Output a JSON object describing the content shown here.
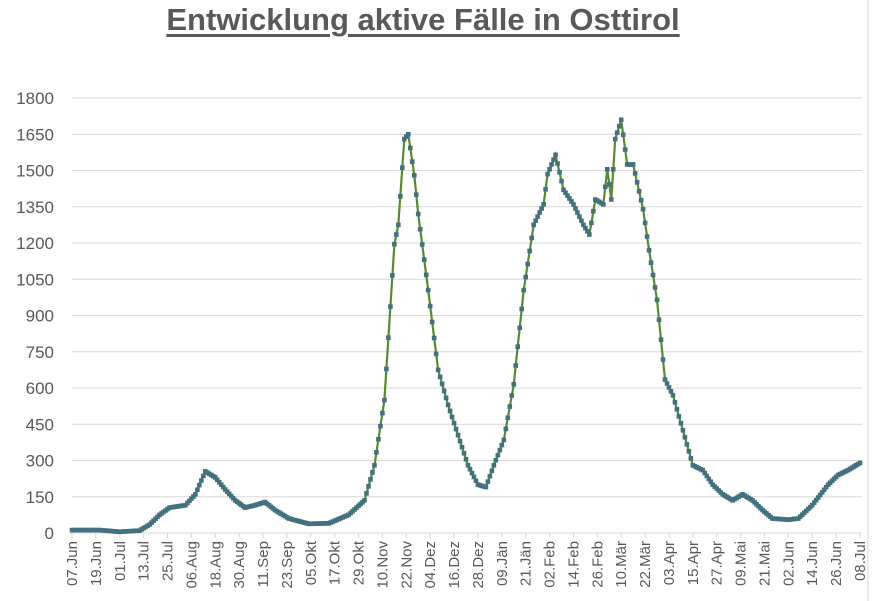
{
  "chart_data": {
    "type": "line",
    "title": "Entwicklung aktive Fälle in Osttirol",
    "xlabel": "",
    "ylabel": "",
    "ylim": [
      0,
      1800
    ],
    "yticks": [
      0,
      150,
      300,
      450,
      600,
      750,
      900,
      1050,
      1200,
      1350,
      1500,
      1650,
      1800
    ],
    "grid": true,
    "legend": null,
    "x_tick_labels": [
      "07.Jun",
      "19.Jun",
      "01.Jul",
      "13.Jul",
      "25.Jul",
      "06.Aug",
      "18.Aug",
      "30.Aug",
      "11.Sep",
      "23.Sep",
      "05.Okt",
      "17.Okt",
      "29.Okt",
      "10.Nov",
      "22.Nov",
      "04.Dez",
      "16.Dez",
      "28.Dez",
      "09.Jän",
      "21.Jän",
      "02.Feb",
      "14.Feb",
      "26.Feb",
      "10.Mär",
      "22.Mär",
      "03.Apr",
      "15.Apr",
      "27.Apr",
      "09.Mai",
      "21.Mai",
      "02.Jun",
      "14.Jun",
      "26.Jun",
      "08.Jul"
    ],
    "x_tick_interval_days": 12,
    "series": [
      {
        "name": "Aktive Fälle",
        "line_color": "#5a8a2e",
        "marker_color": "#44717f",
        "points_day_value": [
          [
            0,
            12
          ],
          [
            14,
            12
          ],
          [
            24,
            5
          ],
          [
            34,
            10
          ],
          [
            39,
            35
          ],
          [
            44,
            75
          ],
          [
            49,
            105
          ],
          [
            57,
            115
          ],
          [
            62,
            160
          ],
          [
            67,
            255
          ],
          [
            72,
            230
          ],
          [
            77,
            180
          ],
          [
            82,
            135
          ],
          [
            87,
            105
          ],
          [
            92,
            115
          ],
          [
            97,
            128
          ],
          [
            102,
            95
          ],
          [
            109,
            60
          ],
          [
            119,
            38
          ],
          [
            129,
            40
          ],
          [
            139,
            75
          ],
          [
            147,
            135
          ],
          [
            152,
            280
          ],
          [
            157,
            550
          ],
          [
            162,
            1195
          ],
          [
            164,
            1275
          ],
          [
            167,
            1630
          ],
          [
            169,
            1650
          ],
          [
            172,
            1480
          ],
          [
            174,
            1320
          ],
          [
            179,
            1005
          ],
          [
            184,
            675
          ],
          [
            189,
            530
          ],
          [
            194,
            405
          ],
          [
            199,
            280
          ],
          [
            204,
            200
          ],
          [
            208,
            190
          ],
          [
            212,
            280
          ],
          [
            217,
            385
          ],
          [
            222,
            615
          ],
          [
            227,
            1005
          ],
          [
            232,
            1275
          ],
          [
            237,
            1360
          ],
          [
            239,
            1485
          ],
          [
            243,
            1565
          ],
          [
            247,
            1420
          ],
          [
            252,
            1360
          ],
          [
            257,
            1275
          ],
          [
            260,
            1235
          ],
          [
            263,
            1380
          ],
          [
            267,
            1360
          ],
          [
            269,
            1505
          ],
          [
            271,
            1380
          ],
          [
            273,
            1630
          ],
          [
            276,
            1710
          ],
          [
            279,
            1525
          ],
          [
            282,
            1525
          ],
          [
            287,
            1340
          ],
          [
            290,
            1170
          ],
          [
            294,
            965
          ],
          [
            298,
            635
          ],
          [
            302,
            570
          ],
          [
            307,
            425
          ],
          [
            312,
            280
          ],
          [
            317,
            260
          ],
          [
            322,
            200
          ],
          [
            327,
            160
          ],
          [
            332,
            135
          ],
          [
            337,
            160
          ],
          [
            342,
            135
          ],
          [
            347,
            95
          ],
          [
            352,
            60
          ],
          [
            360,
            55
          ],
          [
            365,
            60
          ],
          [
            372,
            115
          ],
          [
            380,
            200
          ],
          [
            385,
            240
          ],
          [
            390,
            260
          ],
          [
            396,
            290
          ]
        ]
      }
    ]
  },
  "colors": {
    "title": "#595959",
    "axis_text": "#595959",
    "gridline": "#d9d9d9",
    "line": "#5a8a2e",
    "marker": "#44717f"
  }
}
